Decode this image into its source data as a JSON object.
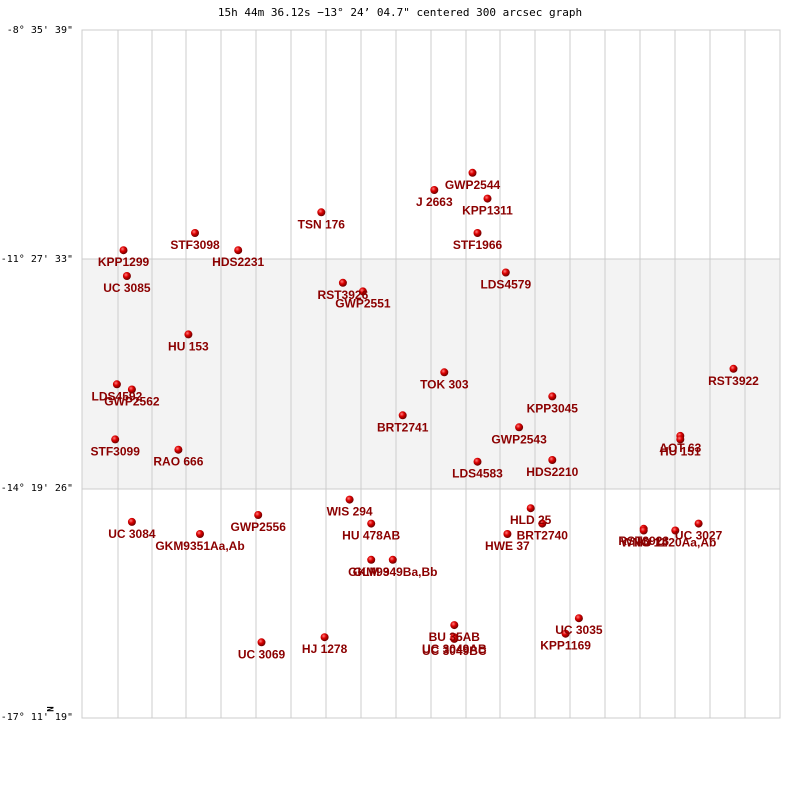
{
  "chart_data": {
    "type": "scatter",
    "title": "15h 44m 36.12s −13° 24’ 04.7\" centered 300 arcsec graph",
    "y_tick_labels": [
      "-8° 35' 39\"",
      "-11° 27' 33\"",
      "-14° 19' 26\"",
      "-17° 11' 19\""
    ],
    "xlim": [
      0,
      21
    ],
    "ylim": [
      0,
      20
    ],
    "north_label": "N",
    "grid": true,
    "points": [
      {
        "name": "GWP2544",
        "x": 11.75,
        "y": 15.85
      },
      {
        "name": "J  2663",
        "x": 10.6,
        "y": 15.35
      },
      {
        "name": "KPP1311",
        "x": 12.2,
        "y": 15.1
      },
      {
        "name": "TSN 176",
        "x": 7.2,
        "y": 14.7
      },
      {
        "name": "STF1966",
        "x": 11.9,
        "y": 14.1
      },
      {
        "name": "STF3098",
        "x": 3.4,
        "y": 14.1
      },
      {
        "name": "KPP1299",
        "x": 1.25,
        "y": 13.6
      },
      {
        "name": "HDS2231",
        "x": 4.7,
        "y": 13.6
      },
      {
        "name": "LDS4579",
        "x": 12.75,
        "y": 12.95
      },
      {
        "name": "UC 3085",
        "x": 1.35,
        "y": 12.85
      },
      {
        "name": "RST3926",
        "x": 7.85,
        "y": 12.65
      },
      {
        "name": "GWP2551",
        "x": 8.45,
        "y": 12.4
      },
      {
        "name": "HU  153",
        "x": 3.2,
        "y": 11.15
      },
      {
        "name": "TOK 303",
        "x": 10.9,
        "y": 10.05
      },
      {
        "name": "RST3922",
        "x": 19.6,
        "y": 10.15
      },
      {
        "name": "LDS4592",
        "x": 1.05,
        "y": 9.7
      },
      {
        "name": "GWP2562",
        "x": 1.5,
        "y": 9.55
      },
      {
        "name": "KPP3045",
        "x": 14.15,
        "y": 9.35
      },
      {
        "name": "BRT2741",
        "x": 9.65,
        "y": 8.8
      },
      {
        "name": "GWP2543",
        "x": 13.15,
        "y": 8.45
      },
      {
        "name": "AOT 63",
        "x": 18.0,
        "y": 8.2
      },
      {
        "name": "HU  151",
        "x": 18.0,
        "y": 8.1
      },
      {
        "name": "STF3099",
        "x": 1.0,
        "y": 8.1
      },
      {
        "name": "RAO 666",
        "x": 2.9,
        "y": 7.8
      },
      {
        "name": "LDS4583",
        "x": 11.9,
        "y": 7.45
      },
      {
        "name": "HDS2210",
        "x": 14.15,
        "y": 7.5
      },
      {
        "name": "WIS 294",
        "x": 8.05,
        "y": 6.35
      },
      {
        "name": "HLD  25",
        "x": 13.5,
        "y": 6.1
      },
      {
        "name": "GWP2556",
        "x": 5.3,
        "y": 5.9
      },
      {
        "name": "UC 3084",
        "x": 1.5,
        "y": 5.7
      },
      {
        "name": "HU  478AB",
        "x": 8.7,
        "y": 5.65
      },
      {
        "name": "BRT2740",
        "x": 13.85,
        "y": 5.65
      },
      {
        "name": "RST3923",
        "x": 16.9,
        "y": 5.5
      },
      {
        "name": "WNO 11",
        "x": 16.9,
        "y": 5.45
      },
      {
        "name": "HU 1420Aa,Ab",
        "x": 17.85,
        "y": 5.45
      },
      {
        "name": "UC 3027",
        "x": 18.55,
        "y": 5.65
      },
      {
        "name": "HWE  37",
        "x": 12.8,
        "y": 5.35
      },
      {
        "name": "GKM9351Aa,Ab",
        "x": 3.55,
        "y": 5.35
      },
      {
        "name": "GKM9349Ba,Bb",
        "x": 9.35,
        "y": 4.6
      },
      {
        "name": "GLM 9",
        "x": 8.7,
        "y": 4.6
      },
      {
        "name": "UC 3035",
        "x": 14.95,
        "y": 2.9
      },
      {
        "name": "BU   35AB",
        "x": 11.2,
        "y": 2.7
      },
      {
        "name": "KPP1169",
        "x": 14.55,
        "y": 2.45
      },
      {
        "name": "UC 3049AB",
        "x": 11.2,
        "y": 2.35
      },
      {
        "name": "UC 3049BC",
        "x": 11.2,
        "y": 2.3
      },
      {
        "name": "HJ 1278",
        "x": 7.3,
        "y": 2.35
      },
      {
        "name": "UC 3069",
        "x": 5.4,
        "y": 2.2
      }
    ]
  }
}
